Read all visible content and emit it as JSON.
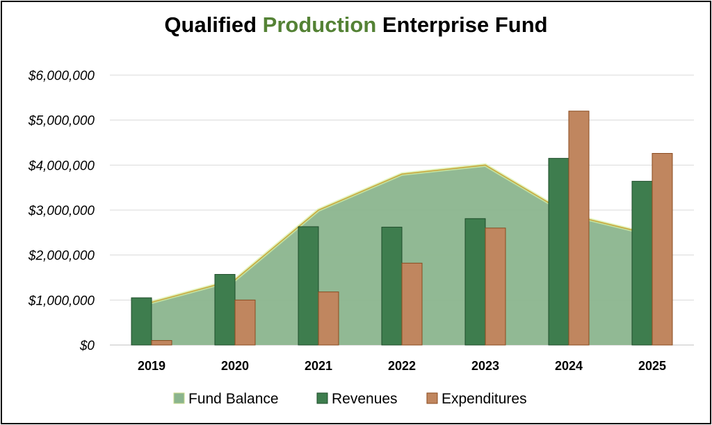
{
  "chart_data": {
    "type": "bar",
    "title": {
      "part1": "Qualified ",
      "part2": "Production",
      "part3": " Enterprise Fund"
    },
    "categories": [
      "2019",
      "2020",
      "2021",
      "2022",
      "2023",
      "2024",
      "2025"
    ],
    "ylim": [
      0,
      6000000
    ],
    "yticks": [
      0,
      1000000,
      2000000,
      3000000,
      4000000,
      5000000,
      6000000
    ],
    "ytick_labels": [
      "$0",
      "$1,000,000",
      "$2,000,000",
      "$3,000,000",
      "$4,000,000",
      "$5,000,000",
      "$6,000,000"
    ],
    "grid": true,
    "legend_position": "bottom",
    "series": [
      {
        "name": "Fund Balance",
        "type": "area",
        "color": "#8BB58E",
        "values": [
          950000,
          1450000,
          3000000,
          3800000,
          4000000,
          2900000,
          2450000
        ]
      },
      {
        "name": "Revenues",
        "type": "bar",
        "color": "#3E7D4E",
        "values": [
          1050000,
          1570000,
          2630000,
          2620000,
          2810000,
          4150000,
          3640000
        ]
      },
      {
        "name": "Expenditures",
        "type": "bar",
        "color": "#C0865F",
        "values": [
          100000,
          1000000,
          1180000,
          1820000,
          2600000,
          5200000,
          4260000
        ]
      }
    ]
  }
}
